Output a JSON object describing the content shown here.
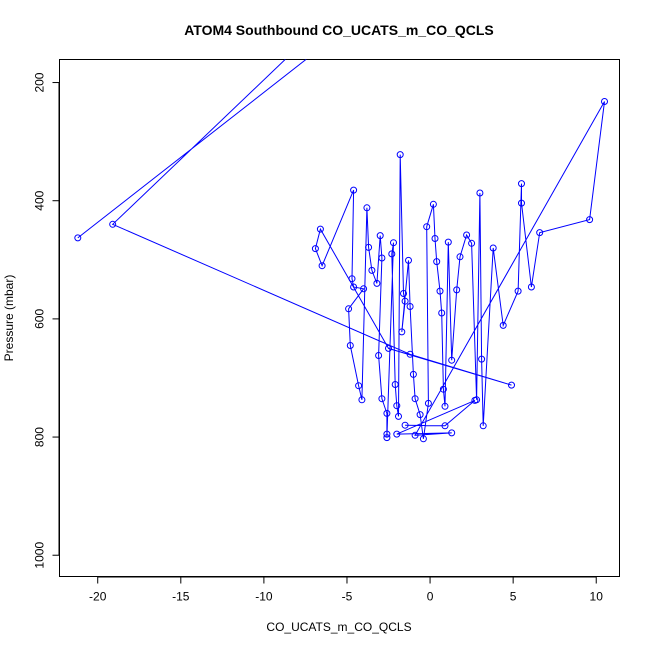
{
  "chart_data": {
    "type": "line",
    "title": "ATOM4 Southbound CO_UCATS_m_CO_QCLS",
    "xlabel": "CO_UCATS_m_CO_QCLS",
    "ylabel": "Pressure (mbar)",
    "xlim": [
      -22.3,
      11.4
    ],
    "ylim": [
      1036,
      161
    ],
    "y_inverted": true,
    "x_ticks": [
      -20,
      -15,
      -10,
      -5,
      0,
      5,
      10
    ],
    "y_ticks": [
      200,
      400,
      600,
      800,
      1000
    ],
    "grid": false,
    "legend": "none",
    "color": "#0000ff",
    "series": [
      {
        "values": [
          [
            -21.2,
            463
          ],
          [
            -7.2,
            155
          ],
          [
            -8.5,
            155
          ],
          [
            -19.1,
            440
          ],
          [
            -1.2,
            660
          ],
          [
            4.9,
            712
          ],
          [
            -2.5,
            650
          ],
          [
            -6.6,
            448
          ],
          [
            -6.9,
            481
          ],
          [
            -6.5,
            510
          ],
          [
            -4.6,
            382
          ],
          [
            -4.7,
            532
          ],
          [
            -4.6,
            546
          ],
          [
            -4.0,
            549
          ],
          [
            -4.9,
            583
          ],
          [
            -4.8,
            645
          ],
          [
            -4.3,
            713
          ],
          [
            -4.1,
            737
          ],
          [
            -3.8,
            412
          ],
          [
            -3.7,
            479
          ],
          [
            -3.5,
            518
          ],
          [
            -3.2,
            540
          ],
          [
            -3.0,
            459
          ],
          [
            -2.9,
            497
          ],
          [
            -3.1,
            662
          ],
          [
            -2.9,
            735
          ],
          [
            -2.6,
            760
          ],
          [
            -2.6,
            795
          ],
          [
            -2.6,
            801
          ],
          [
            -2.2,
            471
          ],
          [
            -2.3,
            490
          ],
          [
            -2.1,
            711
          ],
          [
            -2.0,
            747
          ],
          [
            -1.9,
            765
          ],
          [
            -1.8,
            322
          ],
          [
            -1.6,
            557
          ],
          [
            -1.5,
            570
          ],
          [
            -1.7,
            622
          ],
          [
            -1.3,
            501
          ],
          [
            -1.2,
            579
          ],
          [
            -1.0,
            694
          ],
          [
            -0.9,
            735
          ],
          [
            -0.6,
            762
          ],
          [
            -0.4,
            803
          ],
          [
            -0.1,
            743
          ],
          [
            -0.2,
            444
          ],
          [
            0.2,
            406
          ],
          [
            0.3,
            464
          ],
          [
            0.4,
            503
          ],
          [
            0.6,
            553
          ],
          [
            0.7,
            590
          ],
          [
            0.8,
            719
          ],
          [
            0.9,
            748
          ],
          [
            1.1,
            470
          ],
          [
            1.3,
            670
          ],
          [
            1.6,
            551
          ],
          [
            1.8,
            495
          ],
          [
            2.2,
            458
          ],
          [
            2.5,
            472
          ],
          [
            2.8,
            737
          ],
          [
            3.0,
            387
          ],
          [
            3.1,
            668
          ],
          [
            3.2,
            781
          ],
          [
            3.8,
            480
          ],
          [
            4.4,
            611
          ],
          [
            5.3,
            553
          ],
          [
            5.5,
            371
          ],
          [
            5.5,
            404
          ],
          [
            6.1,
            546
          ],
          [
            6.6,
            454
          ],
          [
            9.6,
            432
          ],
          [
            10.5,
            232
          ],
          [
            -0.9,
            797
          ],
          [
            1.3,
            793
          ],
          [
            -2.0,
            795
          ],
          [
            2.7,
            738
          ],
          [
            0.9,
            781
          ],
          [
            -1.5,
            780
          ]
        ]
      }
    ]
  }
}
